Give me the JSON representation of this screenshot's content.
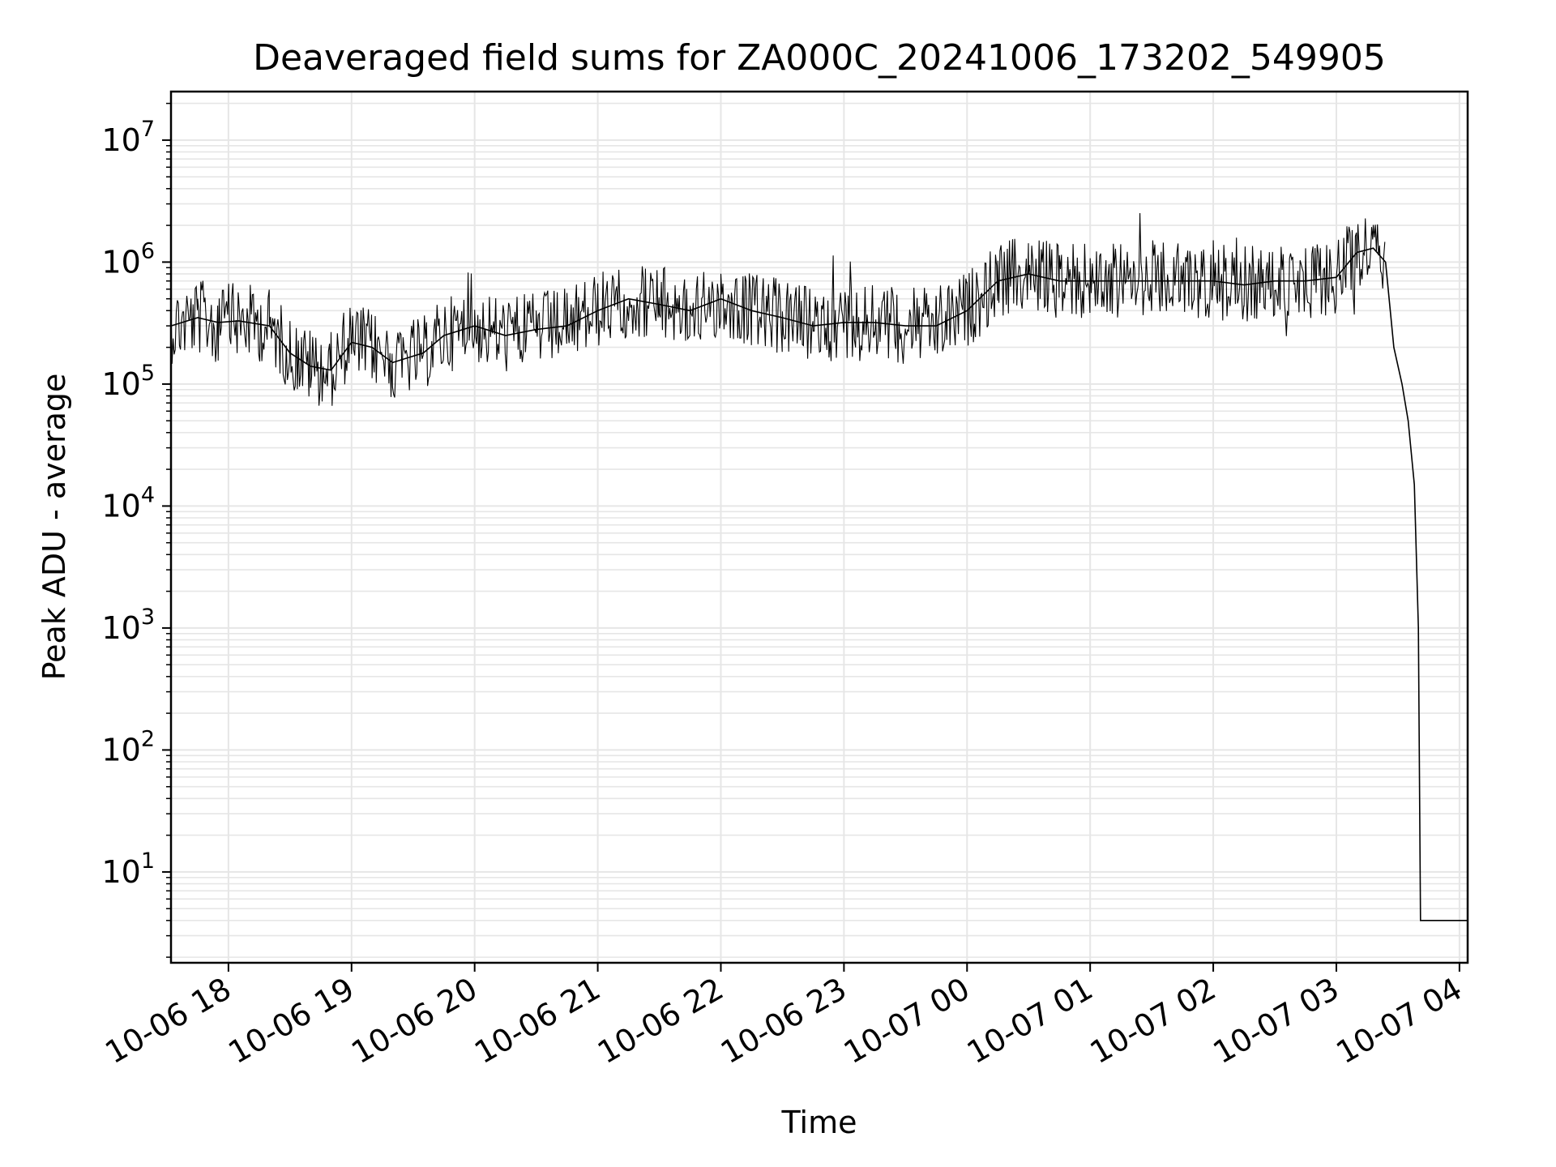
{
  "chart_data": {
    "type": "line",
    "title": "Deaveraged field sums for ZA000C_20241006_173202_549905",
    "xlabel": "Time",
    "ylabel": "Peak ADU - average",
    "yscale": "log",
    "ylim": [
      1.8,
      25000000
    ],
    "xlim": [
      "2024-10-06 17:32",
      "2024-10-07 04:04"
    ],
    "grid": true,
    "line_color": "#000000",
    "grid_color": "#e6e6e6",
    "x_tick_labels": [
      "10-06 18",
      "10-06 19",
      "10-06 20",
      "10-06 21",
      "10-06 22",
      "10-06 23",
      "10-07 00",
      "10-07 01",
      "10-07 02",
      "10-07 03",
      "10-07 04"
    ],
    "y_tick_labels": [
      {
        "base": "10",
        "exp": "1"
      },
      {
        "base": "10",
        "exp": "2"
      },
      {
        "base": "10",
        "exp": "3"
      },
      {
        "base": "10",
        "exp": "4"
      },
      {
        "base": "10",
        "exp": "5"
      },
      {
        "base": "10",
        "exp": "6"
      },
      {
        "base": "10",
        "exp": "7"
      }
    ],
    "series": [
      {
        "x": [
          "2024-10-06 17:32",
          "2024-10-06 17:45",
          "2024-10-06 17:55",
          "2024-10-06 18:05",
          "2024-10-06 18:20",
          "2024-10-06 18:30",
          "2024-10-06 18:40",
          "2024-10-06 18:50",
          "2024-10-06 19:00",
          "2024-10-06 19:10",
          "2024-10-06 19:20",
          "2024-10-06 19:35",
          "2024-10-06 19:45",
          "2024-10-06 20:00",
          "2024-10-06 20:15",
          "2024-10-06 20:30",
          "2024-10-06 20:45",
          "2024-10-06 21:00",
          "2024-10-06 21:15",
          "2024-10-06 21:30",
          "2024-10-06 21:45",
          "2024-10-06 22:00",
          "2024-10-06 22:15",
          "2024-10-06 22:30",
          "2024-10-06 22:45",
          "2024-10-06 23:00",
          "2024-10-06 23:15",
          "2024-10-06 23:30",
          "2024-10-06 23:45",
          "2024-10-07 00:00",
          "2024-10-07 00:15",
          "2024-10-07 00:30",
          "2024-10-07 00:45",
          "2024-10-07 01:00",
          "2024-10-07 01:15",
          "2024-10-07 01:30",
          "2024-10-07 01:45",
          "2024-10-07 02:00",
          "2024-10-07 02:15",
          "2024-10-07 02:30",
          "2024-10-07 02:45",
          "2024-10-07 03:00",
          "2024-10-07 03:10",
          "2024-10-07 03:18",
          "2024-10-07 03:24",
          "2024-10-07 03:28",
          "2024-10-07 03:32",
          "2024-10-07 03:35",
          "2024-10-07 03:38",
          "2024-10-07 03:40",
          "2024-10-07 03:41",
          "2024-10-07 03:50",
          "2024-10-07 04:00",
          "2024-10-07 04:04"
        ],
        "y": [
          300000,
          350000,
          320000,
          330000,
          300000,
          180000,
          140000,
          130000,
          220000,
          200000,
          150000,
          180000,
          250000,
          300000,
          250000,
          280000,
          300000,
          400000,
          500000,
          450000,
          400000,
          500000,
          400000,
          350000,
          300000,
          320000,
          320000,
          300000,
          300000,
          400000,
          700000,
          800000,
          700000,
          700000,
          700000,
          700000,
          700000,
          700000,
          650000,
          700000,
          700000,
          750000,
          1200000,
          1300000,
          1000000,
          200000,
          100000,
          50000,
          15000,
          1000,
          4,
          4,
          4,
          4
        ]
      }
    ]
  }
}
